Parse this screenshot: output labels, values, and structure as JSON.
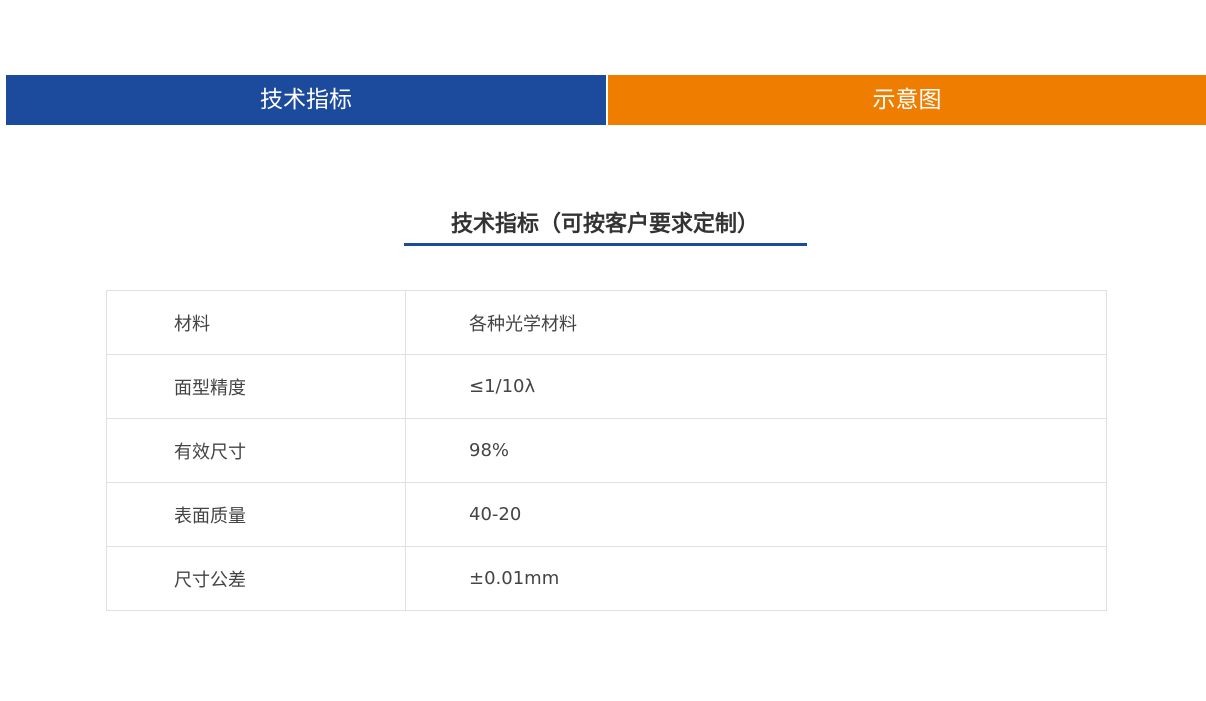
{
  "tabs": [
    {
      "label": "技术指标",
      "color": "#1c4a9d",
      "active": true
    },
    {
      "label": "示意图",
      "color": "#ef7e00",
      "active": false
    }
  ],
  "section": {
    "title": "技术指标（可按客户要求定制）",
    "accent": "#1c4a9d"
  },
  "specs": [
    {
      "label": "材料",
      "value": "各种光学材料"
    },
    {
      "label": "面型精度",
      "value": "≤1/10λ"
    },
    {
      "label": "有效尺寸",
      "value": "98%"
    },
    {
      "label": "表面质量",
      "value": "40-20"
    },
    {
      "label": "尺寸公差",
      "value": "±0.01mm"
    }
  ]
}
